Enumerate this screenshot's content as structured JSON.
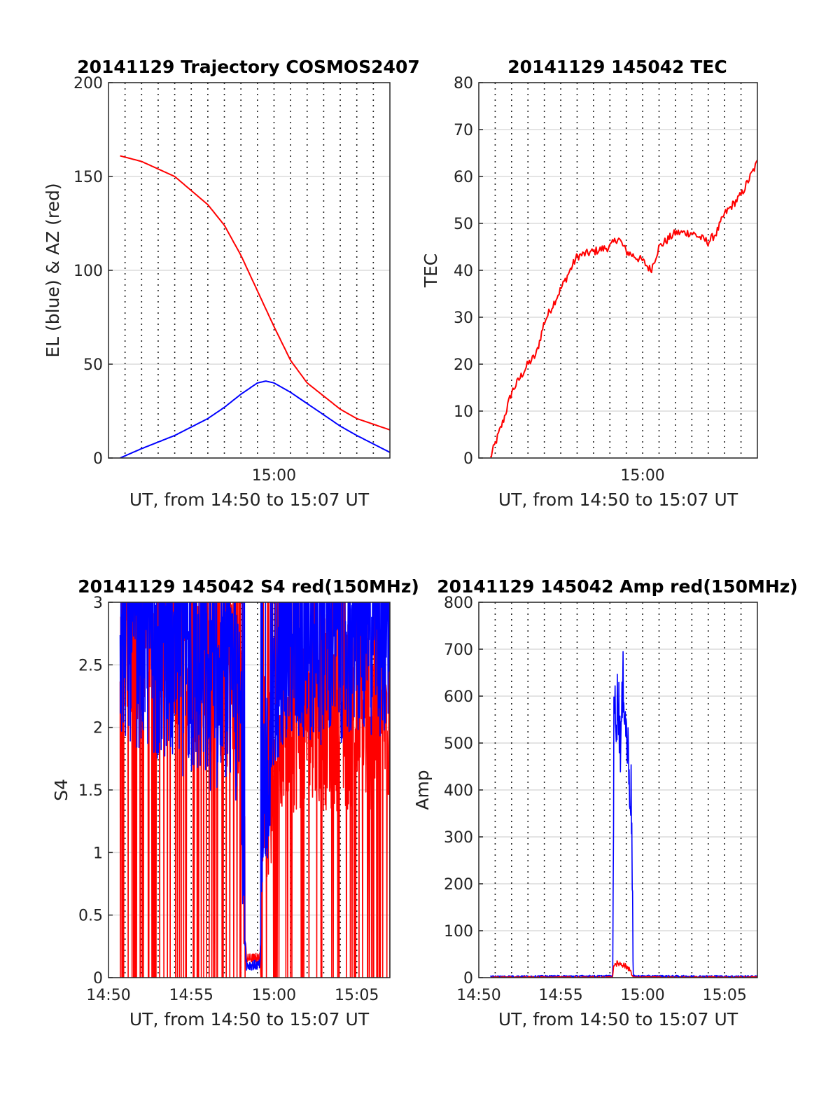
{
  "chart_data": [
    {
      "type": "line",
      "title": "20141129 Trajectory COSMOS2407",
      "xlabel": "UT, from 14:50 to 15:07 UT",
      "ylabel": "EL (blue) & AZ (red)",
      "xlim": [
        "14:50",
        "15:07"
      ],
      "ylim": [
        0,
        200
      ],
      "yticks": [
        "0",
        "50",
        "100",
        "150",
        "200"
      ],
      "xticks": [
        {
          "t": "15:00",
          "label": "15:00"
        }
      ],
      "grid_x_minutes": [
        51,
        52,
        53,
        54,
        55,
        56,
        57,
        58,
        59,
        60,
        61,
        62,
        63,
        64,
        65,
        66
      ],
      "grid_y": true,
      "series": [
        {
          "color": "#ff0000",
          "x": [
            "14:50:42",
            "14:52:00",
            "14:54:00",
            "14:56:00",
            "14:57:00",
            "14:58:00",
            "14:59:00",
            "15:00:00",
            "15:01:00",
            "15:02:00",
            "15:04:00",
            "15:05:00",
            "15:07:00"
          ],
          "y": [
            161,
            158,
            150,
            135,
            124,
            108,
            89,
            70,
            52,
            40,
            26,
            21,
            15
          ]
        },
        {
          "color": "#0000ff",
          "x": [
            "14:50:42",
            "14:52:00",
            "14:54:00",
            "14:56:00",
            "14:57:00",
            "14:58:00",
            "14:59:00",
            "14:59:30",
            "15:00:00",
            "15:01:00",
            "15:02:00",
            "15:04:00",
            "15:05:00",
            "15:07:00"
          ],
          "y": [
            0,
            5,
            12,
            21,
            27,
            34,
            40,
            41,
            40,
            35,
            29,
            17,
            12,
            3
          ]
        }
      ]
    },
    {
      "type": "line",
      "title": "20141129 145042 TEC",
      "xlabel": "UT, from 14:50 to 15:07 UT",
      "ylabel": "TEC",
      "xlim": [
        "14:50",
        "15:07"
      ],
      "ylim": [
        0,
        80
      ],
      "yticks": [
        "0",
        "10",
        "20",
        "30",
        "40",
        "50",
        "60",
        "70",
        "80"
      ],
      "xticks": [
        {
          "t": "15:00",
          "label": "15:00"
        }
      ],
      "grid_x_minutes": [
        51,
        52,
        53,
        54,
        55,
        56,
        57,
        58,
        59,
        60,
        61,
        62,
        63,
        64,
        65,
        66
      ],
      "grid_y": true,
      "series": [
        {
          "color": "#ff0000",
          "x": [
            "14:50:42",
            "14:51:30",
            "14:52:00",
            "14:53:00",
            "14:53:30",
            "14:54:00",
            "14:55:00",
            "14:56:00",
            "14:57:00",
            "14:58:00",
            "14:58:30",
            "14:59:00",
            "14:59:30",
            "15:00:00",
            "15:00:30",
            "15:01:00",
            "15:02:00",
            "15:03:00",
            "15:04:00",
            "15:04:30",
            "15:05:00",
            "15:06:00",
            "15:07:00"
          ],
          "y": [
            0,
            8,
            14,
            20,
            22,
            29,
            36,
            43,
            44,
            45,
            47,
            44,
            43,
            42,
            40,
            45,
            48,
            48,
            46,
            48,
            52,
            56,
            63
          ]
        }
      ]
    },
    {
      "type": "line",
      "title": "20141129 145042 S4 red(150MHz)",
      "xlabel": "UT, from 14:50 to 15:07 UT",
      "ylabel": "S4",
      "xlim": [
        "14:50",
        "15:07"
      ],
      "ylim": [
        0,
        3
      ],
      "yticks": [
        "0",
        "0.5",
        "1",
        "1.5",
        "2",
        "2.5",
        "3"
      ],
      "xticks": [
        {
          "t": "14:50",
          "label": "14:50"
        },
        {
          "t": "14:55",
          "label": "14:55"
        },
        {
          "t": "15:00",
          "label": "15:00"
        },
        {
          "t": "15:05",
          "label": "15:05"
        }
      ],
      "grid_x_minutes": [
        51,
        52,
        53,
        54,
        55,
        56,
        57,
        58,
        59,
        60,
        61,
        62,
        63,
        64,
        65,
        66
      ],
      "grid_y": true,
      "noise": true,
      "series": [
        {
          "color": "#ff0000",
          "x": [
            "14:50:42",
            "14:58:00",
            "14:58:10",
            "14:58:20",
            "14:59:10",
            "14:59:20",
            "14:59:40",
            "15:00:20",
            "15:07:00"
          ],
          "y": [
            2.6,
            2.1,
            0.5,
            0.15,
            0.16,
            1.5,
            1.2,
            1.8,
            1.8
          ]
        },
        {
          "color": "#0000ff",
          "x": [
            "14:50:42",
            "14:58:00",
            "14:58:10",
            "14:58:20",
            "14:59:10",
            "14:59:20",
            "14:59:40",
            "15:00:20",
            "15:07:00"
          ],
          "y": [
            2.4,
            1.8,
            0.5,
            0.1,
            0.1,
            1.3,
            1.1,
            2.3,
            2.4
          ]
        }
      ]
    },
    {
      "type": "line",
      "title": "20141129 145042 Amp red(150MHz)",
      "xlabel": "UT, from 14:50 to 15:07 UT",
      "ylabel": "Amp",
      "xlim": [
        "14:50",
        "15:07"
      ],
      "ylim": [
        0,
        800
      ],
      "yticks": [
        "0",
        "100",
        "200",
        "300",
        "400",
        "500",
        "600",
        "700",
        "800"
      ],
      "xticks": [
        {
          "t": "14:50",
          "label": "14:50"
        },
        {
          "t": "14:55",
          "label": "14:55"
        },
        {
          "t": "15:00",
          "label": "15:00"
        },
        {
          "t": "15:05",
          "label": "15:05"
        }
      ],
      "grid_x_minutes": [
        51,
        52,
        53,
        54,
        55,
        56,
        57,
        58,
        59,
        60,
        61,
        62,
        63,
        64,
        65,
        66
      ],
      "grid_y": true,
      "noise": true,
      "series": [
        {
          "color": "#0000ff",
          "x": [
            "14:50:42",
            "14:58:10",
            "14:58:15",
            "14:58:30",
            "14:58:40",
            "14:58:50",
            "14:59:00",
            "14:59:10",
            "14:59:20",
            "14:59:25",
            "15:07:00"
          ],
          "y": [
            2,
            3,
            560,
            590,
            500,
            640,
            520,
            450,
            360,
            3,
            2
          ]
        },
        {
          "color": "#ff0000",
          "x": [
            "14:50:42",
            "14:58:10",
            "14:58:15",
            "14:58:40",
            "14:59:10",
            "14:59:25",
            "15:07:00"
          ],
          "y": [
            0,
            0,
            30,
            30,
            20,
            0,
            0
          ]
        }
      ]
    }
  ]
}
